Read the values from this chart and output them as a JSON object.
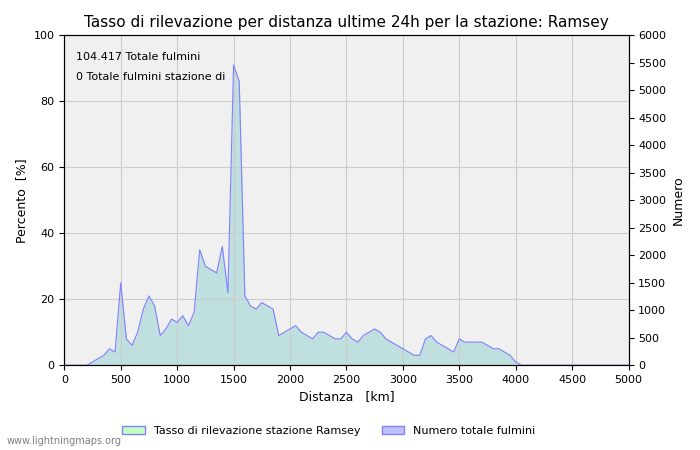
{
  "title": "Tasso di rilevazione per distanza ultime 24h per la stazione: Ramsey",
  "xlabel": "Distanza   [km]",
  "ylabel_left": "Percento  [%]",
  "ylabel_right": "Numero",
  "annotation_line1": "104.417 Totale fulmini",
  "annotation_line2": "0 Totale fulmini stazione di",
  "legend_label1": "Tasso di rilevazione stazione Ramsey",
  "legend_label2": "Numero totale fulmini",
  "watermark": "www.lightningmaps.org",
  "xlim": [
    0,
    5000
  ],
  "ylim_left": [
    0,
    100
  ],
  "ylim_right": [
    0,
    6000
  ],
  "xticks": [
    0,
    500,
    1000,
    1500,
    2000,
    2500,
    3000,
    3500,
    4000,
    4500,
    5000
  ],
  "yticks_left": [
    0,
    20,
    40,
    60,
    80,
    100
  ],
  "yticks_right": [
    0,
    500,
    1000,
    1500,
    2000,
    2500,
    3000,
    3500,
    4000,
    4500,
    5000,
    5500,
    6000
  ],
  "line_color": "#8080ff",
  "fill_color_blue": "#c0c0ff",
  "fill_color_green": "#c0ffc0",
  "bg_color": "#f0f0f0",
  "grid_color": "#cccccc",
  "title_fontsize": 11,
  "label_fontsize": 9,
  "tick_fontsize": 8,
  "x_data": [
    0,
    50,
    100,
    150,
    200,
    250,
    300,
    350,
    400,
    450,
    500,
    550,
    600,
    650,
    700,
    750,
    800,
    850,
    900,
    950,
    1000,
    1050,
    1100,
    1150,
    1200,
    1250,
    1300,
    1350,
    1400,
    1450,
    1500,
    1550,
    1600,
    1650,
    1700,
    1750,
    1800,
    1850,
    1900,
    1950,
    2000,
    2050,
    2100,
    2150,
    2200,
    2250,
    2300,
    2350,
    2400,
    2450,
    2500,
    2550,
    2600,
    2650,
    2700,
    2750,
    2800,
    2850,
    2900,
    2950,
    3000,
    3050,
    3100,
    3150,
    3200,
    3250,
    3300,
    3350,
    3400,
    3450,
    3500,
    3550,
    3600,
    3650,
    3700,
    3750,
    3800,
    3850,
    3900,
    3950,
    4000,
    4050,
    4100,
    4150,
    4200,
    4250,
    4300,
    4350,
    4400,
    4450,
    4500,
    4550,
    4600,
    4650,
    4700,
    4750,
    4800,
    4850,
    4900,
    4950,
    5000
  ],
  "y_data": [
    0,
    0,
    0,
    0,
    0,
    1,
    2,
    3,
    5,
    4,
    25,
    8,
    6,
    10,
    17,
    21,
    18,
    9,
    11,
    14,
    13,
    15,
    12,
    16,
    35,
    30,
    29,
    28,
    36,
    22,
    91,
    86,
    21,
    18,
    17,
    19,
    18,
    17,
    9,
    10,
    11,
    12,
    10,
    9,
    8,
    10,
    10,
    9,
    8,
    8,
    10,
    8,
    7,
    9,
    10,
    11,
    10,
    8,
    7,
    6,
    5,
    4,
    3,
    3,
    8,
    9,
    7,
    6,
    5,
    4,
    8,
    7,
    7,
    7,
    7,
    6,
    5,
    5,
    4,
    3,
    1,
    0,
    0,
    0,
    0,
    0,
    0,
    0,
    0,
    0,
    0,
    0,
    0,
    0,
    0,
    0,
    0,
    0,
    0,
    0,
    0
  ]
}
